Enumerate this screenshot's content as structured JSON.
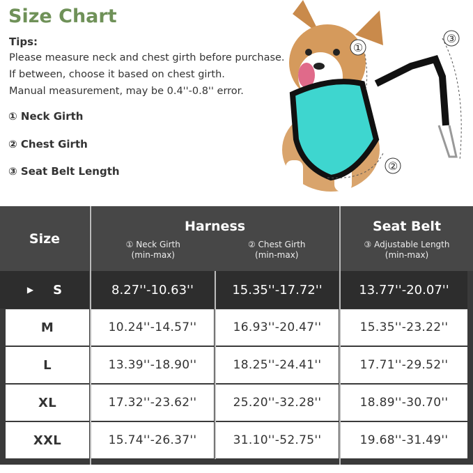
{
  "title": "Size Chart",
  "tips": {
    "label": "Tips:",
    "lines": [
      "Please measure neck and chest girth before purchase.",
      "If between, choose it based on chest girth.",
      "Manual measurement, may be 0.4''-0.8'' error."
    ]
  },
  "legend": [
    "① Neck Girth",
    "② Chest Girth",
    "③ Seat Belt Length"
  ],
  "photo_markers": [
    "①",
    "②",
    "③"
  ],
  "colors": {
    "title": "#6f9158",
    "header": "#474747",
    "selected_row": "#2d2d2d",
    "harness": "#3ed6cf"
  },
  "table": {
    "size_header": "Size",
    "harness_header": "Harness",
    "seatbelt_header": "Seat Belt",
    "neck": {
      "label": "① Neck Girth",
      "unit": "(min-max)"
    },
    "chest": {
      "label": "② Chest Girth",
      "unit": "(min-max)"
    },
    "length": {
      "label": "③ Adjustable Length",
      "unit": "(min-max)"
    },
    "selected_icon": "play-triangle-icon",
    "rows": [
      {
        "size": "S",
        "neck": "8.27''-10.63''",
        "chest": "15.35''-17.72''",
        "length": "13.77''-20.07''"
      },
      {
        "size": "M",
        "neck": "10.24''-14.57''",
        "chest": "16.93''-20.47''",
        "length": "15.35''-23.22''"
      },
      {
        "size": "L",
        "neck": "13.39''-18.90''",
        "chest": "18.25''-24.41''",
        "length": "17.71''-29.52''"
      },
      {
        "size": "XL",
        "neck": "17.32''-23.62''",
        "chest": "25.20''-32.28''",
        "length": "18.89''-30.70''"
      },
      {
        "size": "XXL",
        "neck": "15.74''-26.37''",
        "chest": "31.10''-52.75''",
        "length": "19.68''-31.49''"
      }
    ]
  }
}
